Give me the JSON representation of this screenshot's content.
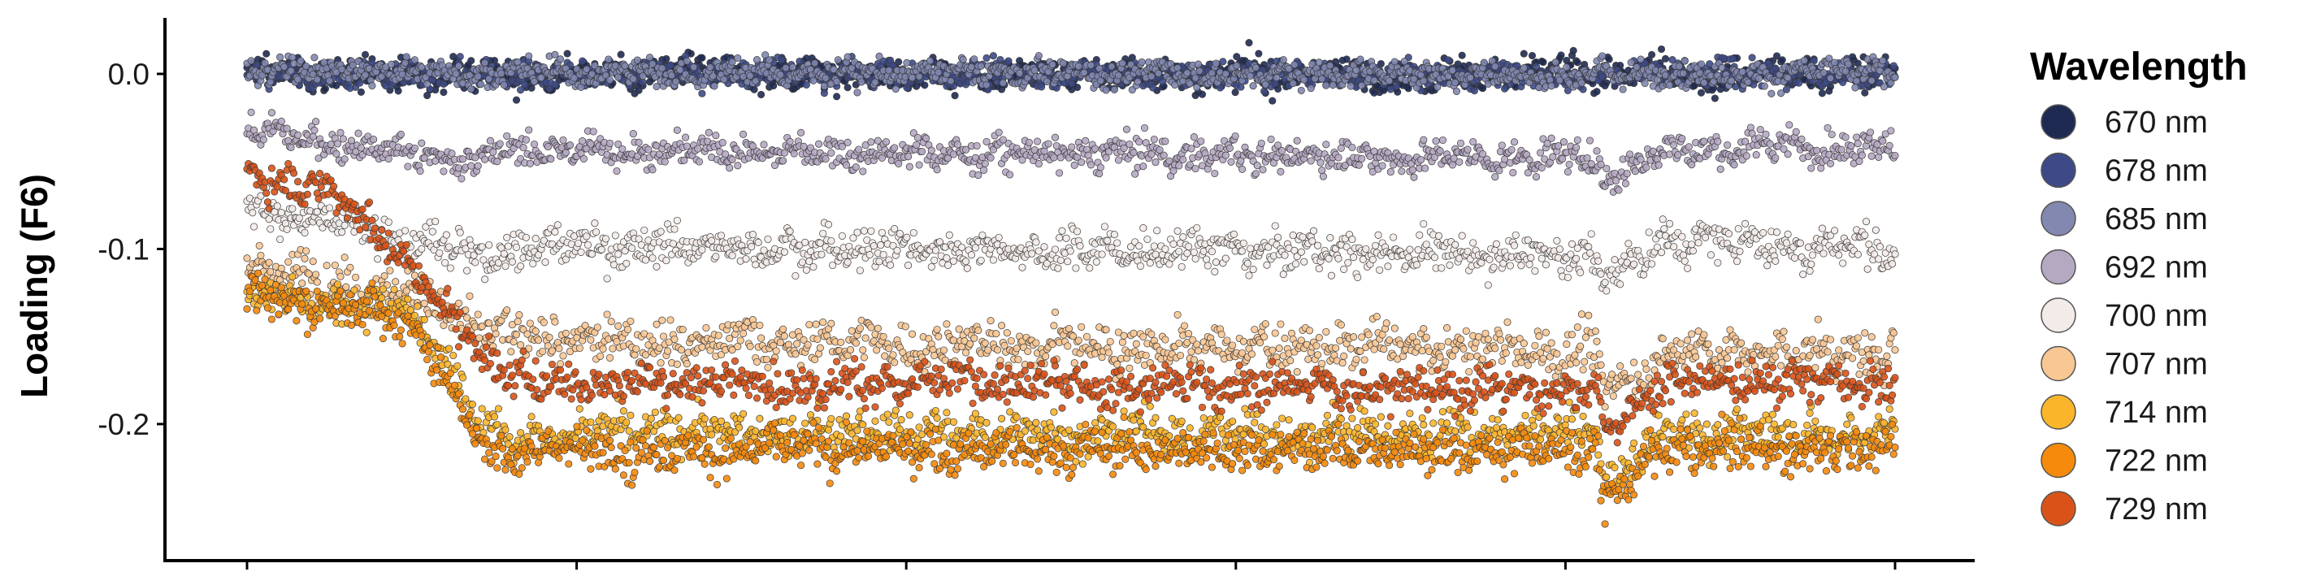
{
  "chart_data": {
    "type": "scatter",
    "title": "",
    "xlabel": "",
    "ylabel": "Loading (F6)",
    "ylim": [
      -0.278,
      0.032
    ],
    "xlim": [
      0,
      1
    ],
    "x_ticks": [
      0,
      0.2,
      0.4,
      0.6,
      0.8,
      1.0
    ],
    "x_tick_labels_visible": false,
    "y_ticks": [
      0.0,
      -0.1,
      -0.2
    ],
    "y_tick_labels": [
      "0.0",
      "-0.1",
      "-0.2"
    ],
    "grid": false,
    "legend": {
      "title": "Wavelength",
      "position": "right"
    },
    "series": [
      {
        "name": "670 nm",
        "color": "#1f2a52",
        "profile": [
          {
            "x": 0,
            "y": 0.0
          },
          {
            "x": 0.14,
            "y": 0.0
          },
          {
            "x": 0.82,
            "y": 0.0
          },
          {
            "x": 1.0,
            "y": 0.0
          }
        ],
        "noise": 0.01
      },
      {
        "name": "678 nm",
        "color": "#3d4a87",
        "profile": [
          {
            "x": 0,
            "y": 0.0
          },
          {
            "x": 0.14,
            "y": 0.0
          },
          {
            "x": 0.82,
            "y": 0.0
          },
          {
            "x": 1.0,
            "y": 0.0
          }
        ],
        "noise": 0.008
      },
      {
        "name": "685 nm",
        "color": "#8288b0",
        "profile": [
          {
            "x": 0,
            "y": 0.002
          },
          {
            "x": 0.14,
            "y": 0.001
          },
          {
            "x": 0.82,
            "y": 0.0
          },
          {
            "x": 1.0,
            "y": 0.001
          }
        ],
        "noise": 0.008
      },
      {
        "name": "692 nm",
        "color": "#b5a9c2",
        "profile": [
          {
            "x": 0,
            "y": -0.033
          },
          {
            "x": 0.14,
            "y": -0.05
          },
          {
            "x": 0.16,
            "y": -0.043
          },
          {
            "x": 0.82,
            "y": -0.048
          },
          {
            "x": 0.823,
            "y": -0.06
          },
          {
            "x": 0.86,
            "y": -0.043
          },
          {
            "x": 1.0,
            "y": -0.04
          }
        ],
        "noise": 0.01
      },
      {
        "name": "700 nm",
        "color": "#f3ebe8",
        "profile": [
          {
            "x": 0,
            "y": -0.075
          },
          {
            "x": 0.14,
            "y": -0.105
          },
          {
            "x": 0.16,
            "y": -0.098
          },
          {
            "x": 0.82,
            "y": -0.103
          },
          {
            "x": 0.823,
            "y": -0.12
          },
          {
            "x": 0.86,
            "y": -0.094
          },
          {
            "x": 1.0,
            "y": -0.1
          }
        ],
        "noise": 0.012
      },
      {
        "name": "707 nm",
        "color": "#f8c793",
        "profile": [
          {
            "x": 0,
            "y": -0.11
          },
          {
            "x": 0.1,
            "y": -0.125
          },
          {
            "x": 0.14,
            "y": -0.145
          },
          {
            "x": 0.16,
            "y": -0.152
          },
          {
            "x": 0.82,
            "y": -0.158
          },
          {
            "x": 0.823,
            "y": -0.185
          },
          {
            "x": 0.86,
            "y": -0.158
          },
          {
            "x": 1.0,
            "y": -0.16
          }
        ],
        "noise": 0.014
      },
      {
        "name": "714 nm",
        "color": "#fbb52b",
        "profile": [
          {
            "x": 0,
            "y": -0.125
          },
          {
            "x": 0.1,
            "y": -0.135
          },
          {
            "x": 0.145,
            "y": -0.2
          },
          {
            "x": 0.16,
            "y": -0.205
          },
          {
            "x": 0.82,
            "y": -0.205
          },
          {
            "x": 0.823,
            "y": -0.235
          },
          {
            "x": 0.86,
            "y": -0.205
          },
          {
            "x": 1.0,
            "y": -0.205
          }
        ],
        "noise": 0.013
      },
      {
        "name": "722 nm",
        "color": "#f58a0c",
        "profile": [
          {
            "x": 0,
            "y": -0.125
          },
          {
            "x": 0.1,
            "y": -0.14
          },
          {
            "x": 0.145,
            "y": -0.215
          },
          {
            "x": 0.16,
            "y": -0.215
          },
          {
            "x": 0.82,
            "y": -0.215
          },
          {
            "x": 0.823,
            "y": -0.245
          },
          {
            "x": 0.86,
            "y": -0.215
          },
          {
            "x": 1.0,
            "y": -0.215
          }
        ],
        "noise": 0.013
      },
      {
        "name": "729 nm",
        "color": "#d95318",
        "profile": [
          {
            "x": 0,
            "y": -0.055
          },
          {
            "x": 0.06,
            "y": -0.07
          },
          {
            "x": 0.14,
            "y": -0.155
          },
          {
            "x": 0.16,
            "y": -0.175
          },
          {
            "x": 0.82,
            "y": -0.18
          },
          {
            "x": 0.823,
            "y": -0.205
          },
          {
            "x": 0.86,
            "y": -0.175
          },
          {
            "x": 1.0,
            "y": -0.178
          }
        ],
        "noise": 0.012
      }
    ]
  }
}
